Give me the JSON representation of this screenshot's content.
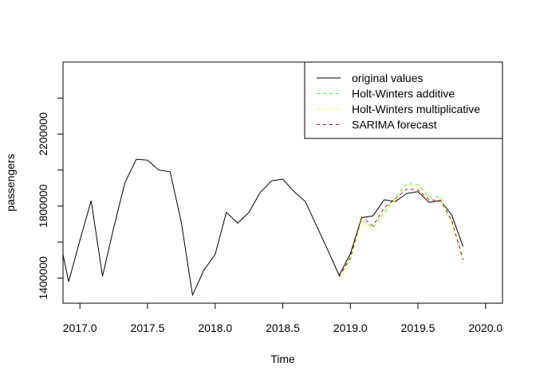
{
  "chart_data": {
    "type": "line",
    "title": "",
    "xlabel": "Time",
    "ylabel": "passengers",
    "xlim": [
      2016.875,
      2020.125
    ],
    "ylim": [
      1260000,
      2600000
    ],
    "x_ticks": [
      2017.0,
      2017.5,
      2018.0,
      2018.5,
      2019.0,
      2019.5,
      2020.0
    ],
    "x_tick_labels": [
      "2017.0",
      "2017.5",
      "2018.0",
      "2018.5",
      "2019.0",
      "2019.5",
      "2020.0"
    ],
    "y_ticks": [
      1400000,
      1800000,
      2200000
    ],
    "y_tick_labels": [
      "1400000",
      "1800000",
      "2200000"
    ],
    "y_minor_ticks": [
      1600000,
      2000000,
      2400000
    ],
    "grid": false,
    "legend_position": "top-right",
    "series": [
      {
        "name": "original values",
        "color": "#000000",
        "dash": "solid",
        "points": [
          [
            2016.875,
            1530000
          ],
          [
            2016.917,
            1380000
          ],
          [
            2017.0,
            1610000
          ],
          [
            2017.083,
            1830000
          ],
          [
            2017.167,
            1410000
          ],
          [
            2017.25,
            1680000
          ],
          [
            2017.333,
            1930000
          ],
          [
            2017.417,
            2060000
          ],
          [
            2017.5,
            2055000
          ],
          [
            2017.583,
            2000000
          ],
          [
            2017.667,
            1990000
          ],
          [
            2017.75,
            1710000
          ],
          [
            2017.833,
            1305000
          ],
          [
            2017.917,
            1445000
          ],
          [
            2018.0,
            1530000
          ],
          [
            2018.083,
            1765000
          ],
          [
            2018.167,
            1705000
          ],
          [
            2018.25,
            1765000
          ],
          [
            2018.333,
            1875000
          ],
          [
            2018.417,
            1940000
          ],
          [
            2018.5,
            1950000
          ],
          [
            2018.583,
            1880000
          ],
          [
            2018.667,
            1825000
          ],
          [
            2018.75,
            1690000
          ],
          [
            2018.833,
            1555000
          ],
          [
            2018.917,
            1415000
          ],
          [
            2019.0,
            1535000
          ],
          [
            2019.083,
            1735000
          ],
          [
            2019.167,
            1745000
          ],
          [
            2019.25,
            1835000
          ],
          [
            2019.333,
            1825000
          ],
          [
            2019.417,
            1870000
          ],
          [
            2019.5,
            1880000
          ],
          [
            2019.583,
            1820000
          ],
          [
            2019.667,
            1830000
          ],
          [
            2019.75,
            1750000
          ],
          [
            2019.833,
            1575000
          ]
        ]
      },
      {
        "name": "Holt-Winters additive",
        "color": "#33ff33",
        "dash": "dashed",
        "points": [
          [
            2018.917,
            1410000
          ],
          [
            2019.0,
            1505000
          ],
          [
            2019.083,
            1725000
          ],
          [
            2019.167,
            1680000
          ],
          [
            2019.25,
            1765000
          ],
          [
            2019.333,
            1850000
          ],
          [
            2019.417,
            1925000
          ],
          [
            2019.5,
            1920000
          ],
          [
            2019.583,
            1850000
          ],
          [
            2019.667,
            1850000
          ],
          [
            2019.75,
            1710000
          ],
          [
            2019.833,
            1510000
          ]
        ]
      },
      {
        "name": "Holt-Winters multiplicative",
        "color": "#ffff33",
        "dash": "dashed",
        "points": [
          [
            2018.917,
            1385000
          ],
          [
            2019.0,
            1490000
          ],
          [
            2019.083,
            1720000
          ],
          [
            2019.167,
            1665000
          ],
          [
            2019.25,
            1745000
          ],
          [
            2019.333,
            1835000
          ],
          [
            2019.417,
            1915000
          ],
          [
            2019.5,
            1910000
          ],
          [
            2019.583,
            1840000
          ],
          [
            2019.667,
            1840000
          ],
          [
            2019.75,
            1695000
          ],
          [
            2019.833,
            1485000
          ]
        ]
      },
      {
        "name": "SARIMA forecast",
        "color": "#cc0033",
        "dash": "dashed",
        "points": [
          [
            2018.917,
            1405000
          ],
          [
            2019.0,
            1515000
          ],
          [
            2019.083,
            1740000
          ],
          [
            2019.167,
            1690000
          ],
          [
            2019.25,
            1790000
          ],
          [
            2019.333,
            1840000
          ],
          [
            2019.417,
            1895000
          ],
          [
            2019.5,
            1890000
          ],
          [
            2019.583,
            1835000
          ],
          [
            2019.667,
            1830000
          ],
          [
            2019.75,
            1720000
          ],
          [
            2019.833,
            1500000
          ]
        ]
      }
    ]
  }
}
